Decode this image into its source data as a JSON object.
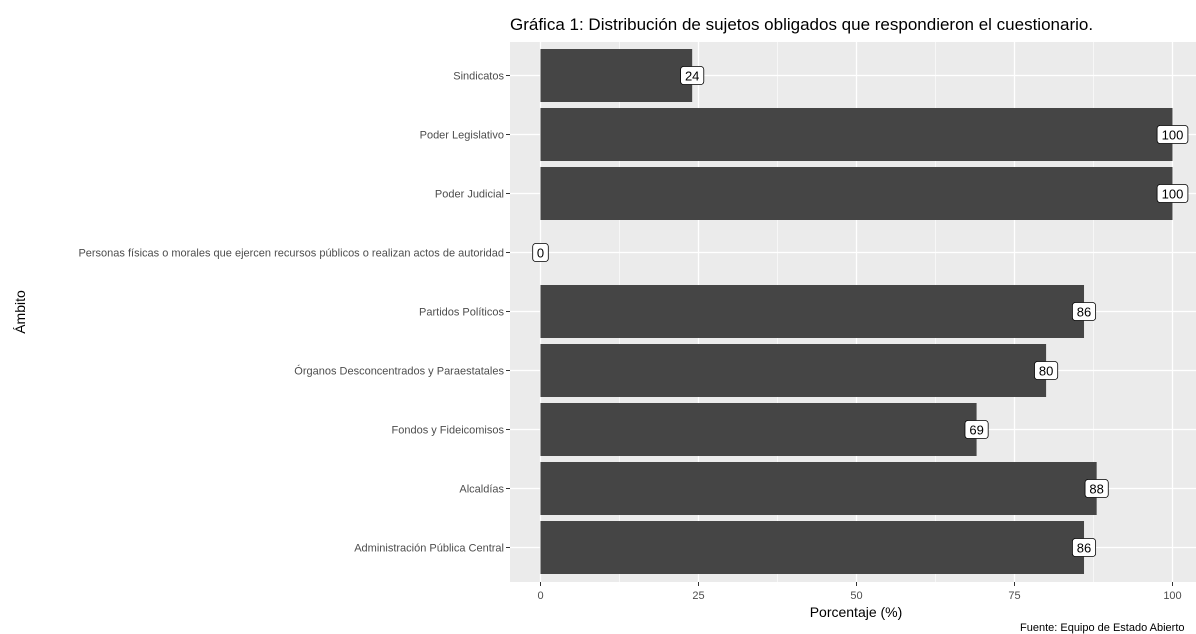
{
  "chart_data": {
    "type": "bar",
    "orientation": "horizontal",
    "title": "Gráfica 1: Distribución de sujetos obligados que respondieron el cuestionario.",
    "xlabel": "Porcentaje (%)",
    "ylabel": "Ámbito",
    "caption": "Fuente: Equipo de Estado Abierto",
    "xlim": [
      0,
      100
    ],
    "xticks": [
      0,
      25,
      50,
      75,
      100
    ],
    "grid": true,
    "bar_color": "#454545",
    "panel_color": "#ebebeb",
    "categories": [
      "Sindicatos",
      "Poder Legislativo",
      "Poder Judicial",
      "Personas físicas o morales que ejercen recursos públicos o realizan actos de autoridad",
      "Partidos Políticos",
      "Órganos Desconcentrados y Paraestatales",
      "Fondos y Fideicomisos",
      "Alcaldías",
      "Administración Pública Central"
    ],
    "values": [
      24,
      100,
      100,
      0,
      86,
      80,
      69,
      88,
      86
    ],
    "data_labels": [
      "24",
      "100",
      "100",
      "0",
      "86",
      "80",
      "69",
      "88",
      "86"
    ]
  }
}
